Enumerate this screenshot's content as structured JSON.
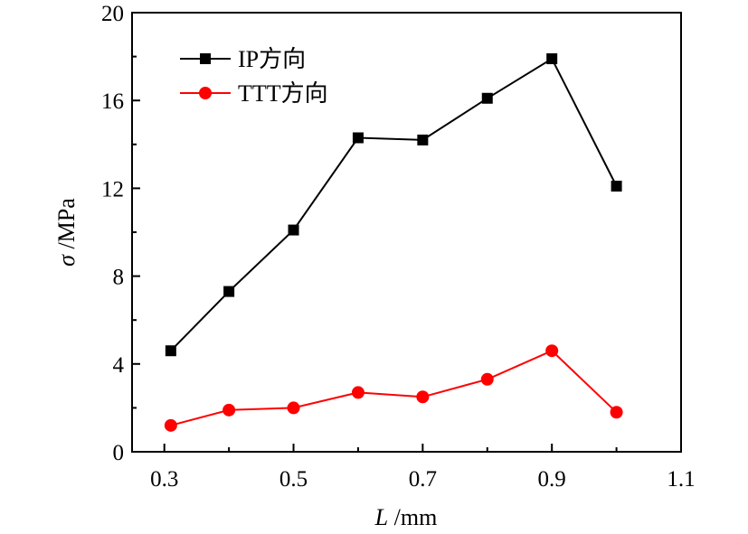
{
  "chart_data": {
    "type": "line",
    "xlabel": {
      "var": "L",
      "unit": " /mm"
    },
    "ylabel": {
      "var": "σ",
      "unit": " /MPa"
    },
    "xlim": [
      0.25,
      1.1
    ],
    "ylim": [
      0,
      20
    ],
    "xticks": [
      0.3,
      0.5,
      0.7,
      0.9,
      1.1
    ],
    "xtick_labels": [
      "0.3",
      "0.5",
      "0.7",
      "0.9",
      "1.1"
    ],
    "yticks": [
      0,
      4,
      8,
      12,
      16,
      20
    ],
    "ytick_labels": [
      "0",
      "4",
      "8",
      "12",
      "16",
      "20"
    ],
    "grid": false,
    "legend_position": "top-left",
    "series": [
      {
        "name": "IP方向",
        "color": "#000000",
        "marker": "square",
        "x": [
          0.31,
          0.4,
          0.5,
          0.6,
          0.7,
          0.8,
          0.9,
          1.0
        ],
        "y": [
          4.6,
          7.3,
          10.1,
          14.3,
          14.2,
          16.1,
          17.9,
          12.1
        ]
      },
      {
        "name": "TTT方向",
        "color": "#ff0000",
        "marker": "circle",
        "x": [
          0.31,
          0.4,
          0.5,
          0.6,
          0.7,
          0.8,
          0.9,
          1.0
        ],
        "y": [
          1.2,
          1.9,
          2.0,
          2.7,
          2.5,
          3.3,
          4.6,
          1.8
        ]
      }
    ]
  }
}
